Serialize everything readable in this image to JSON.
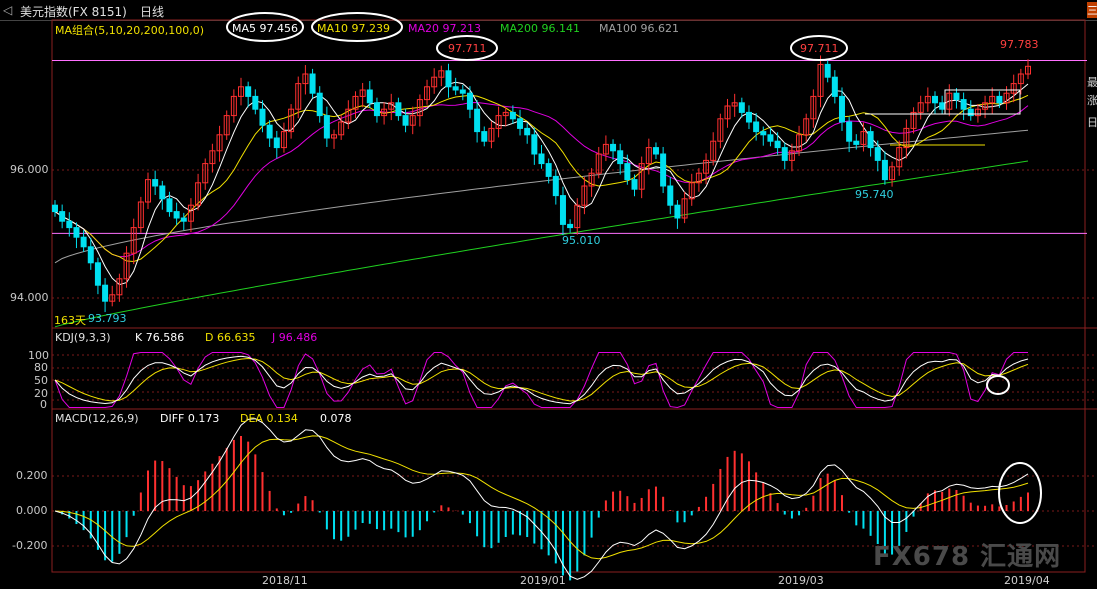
{
  "header": {
    "instrument": "美元指数(FX 8151)",
    "period": "日线",
    "collapse_glyph": "◁"
  },
  "legend_main": {
    "group": "MA组合(5,10,20,200,100,0)",
    "items": [
      {
        "label": "MA5 97.456",
        "color": "#ffffff",
        "circled": true
      },
      {
        "label": "MA10 97.239",
        "color": "#f0e000",
        "circled": true
      },
      {
        "label": "MA20 97.213",
        "color": "#e000e0",
        "circled": false
      },
      {
        "label": "MA200 96.141",
        "color": "#20d020",
        "circled": false
      },
      {
        "label": "MA100 96.621",
        "color": "#a0a0a0",
        "circled": false
      }
    ]
  },
  "legend_kdj": {
    "group": "KDJ(9,3,3)",
    "items": [
      {
        "label": "K 76.586",
        "color": "#ffffff"
      },
      {
        "label": "D 66.635",
        "color": "#f0e000"
      },
      {
        "label": "J 96.486",
        "color": "#e000e0"
      }
    ]
  },
  "legend_macd": {
    "group": "MACD(12,26,9)",
    "items": [
      {
        "label": "DIFF 0.173",
        "color": "#ffffff"
      },
      {
        "label": "DEA 0.134",
        "color": "#f0e000"
      },
      {
        "label": "0.078",
        "color": "#ffffff"
      }
    ]
  },
  "price_axis": {
    "label_96": "96.000",
    "label_94": "94.000"
  },
  "kdj_axis": [
    "100",
    "80",
    "50",
    "20",
    "0"
  ],
  "macd_axis": [
    "0.200",
    "0.000",
    "-0.200"
  ],
  "dates": [
    "2018/11",
    "2019/01",
    "2019/03",
    "2019/04"
  ],
  "annotations": {
    "high1": "97.711",
    "high2": "97.711",
    "last_high": "97.783",
    "low1": "95.010",
    "low2": "95.740",
    "low_all": "93.793",
    "days_label": "163天"
  },
  "right_edge_fragments": [
    "三",
    "最",
    "涨",
    "日",
    "",
    "I"
  ],
  "watermark": "FX678 汇通网",
  "colors": {
    "up": "#ff3030",
    "down": "#00e0f0",
    "ma5": "#ffffff",
    "ma10": "#f0e000",
    "ma20": "#e000e0",
    "ma200": "#20d020",
    "ma100": "#a0a0a0"
  },
  "chart_data": {
    "type": "candlestick",
    "title": "美元指数(FX 8151) 日线",
    "x_range": [
      "2018/10",
      "2019/04"
    ],
    "ylim": [
      93.6,
      97.9
    ],
    "notable_values": {
      "high_1": 97.711,
      "high_2": 97.711,
      "last_high": 97.783,
      "low_1": 95.01,
      "low_2": 95.74,
      "low_min": 93.793
    },
    "moving_averages": {
      "MA5": 97.456,
      "MA10": 97.239,
      "MA20": 97.213,
      "MA200": 96.141,
      "MA100": 96.621
    },
    "kdj": {
      "K": 76.586,
      "D": 66.635,
      "J": 96.486
    },
    "macd": {
      "DIFF": 0.173,
      "DEA": 0.134,
      "MACD": 0.078
    },
    "closes_approx": [
      95.35,
      95.2,
      95.1,
      94.95,
      94.8,
      94.55,
      94.2,
      93.95,
      94.05,
      94.3,
      94.7,
      95.1,
      95.5,
      95.85,
      95.75,
      95.55,
      95.35,
      95.25,
      95.2,
      95.45,
      95.8,
      96.1,
      96.3,
      96.55,
      96.85,
      97.15,
      97.3,
      97.15,
      96.95,
      96.7,
      96.5,
      96.35,
      96.6,
      96.95,
      97.35,
      97.5,
      97.2,
      96.85,
      96.5,
      96.55,
      96.75,
      96.95,
      97.15,
      97.25,
      97.05,
      96.85,
      96.95,
      97.05,
      96.85,
      96.7,
      96.85,
      97.1,
      97.3,
      97.45,
      97.55,
      97.3,
      97.25,
      97.2,
      96.95,
      96.6,
      96.45,
      96.65,
      96.85,
      96.9,
      96.8,
      96.65,
      96.55,
      96.25,
      96.1,
      95.9,
      95.6,
      95.15,
      95.1,
      95.45,
      95.75,
      95.95,
      96.25,
      96.4,
      96.3,
      96.1,
      95.85,
      95.7,
      96.1,
      96.35,
      96.25,
      95.75,
      95.45,
      95.25,
      95.55,
      95.8,
      95.95,
      96.15,
      96.45,
      96.8,
      97.0,
      97.05,
      96.9,
      96.75,
      96.6,
      96.55,
      96.45,
      96.35,
      96.15,
      96.3,
      96.55,
      96.8,
      97.15,
      97.65,
      97.45,
      97.15,
      96.75,
      96.45,
      96.4,
      96.6,
      96.35,
      96.15,
      95.85,
      96.05,
      96.35,
      96.65,
      96.9,
      97.05,
      97.15,
      97.05,
      96.95,
      97.2,
      97.1,
      96.95,
      96.85,
      96.95,
      97.05,
      97.15,
      97.05,
      97.2,
      97.35,
      97.5,
      97.62
    ]
  }
}
